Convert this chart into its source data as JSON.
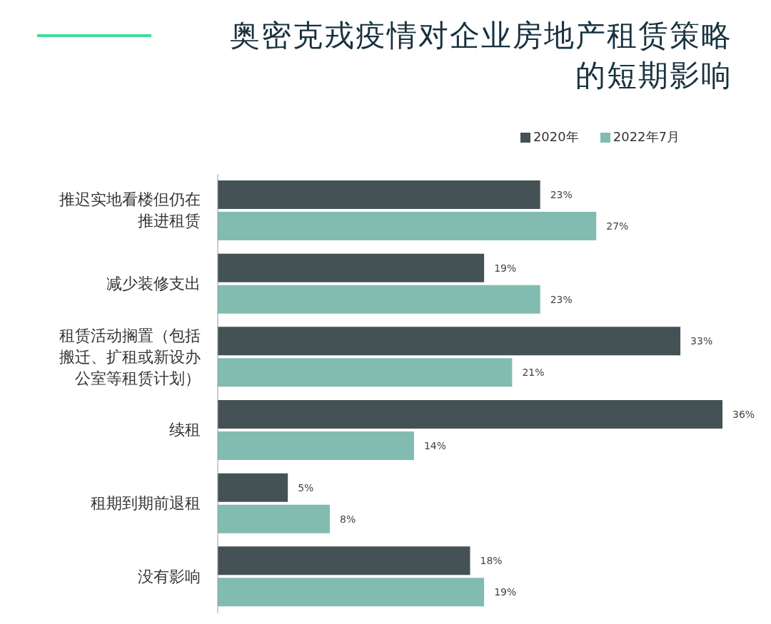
{
  "chart_data": {
    "type": "bar",
    "orientation": "horizontal",
    "title": "奥密克戎疫情对企业房地产租赁策略的短期影响",
    "categories": [
      "推迟实地看楼但仍在推进租赁",
      "减少装修支出",
      "租赁活动搁置（包括搬迁、扩租或新设办公室等租赁计划）",
      "续租",
      "租期到期前退租",
      "没有影响"
    ],
    "series": [
      {
        "name": "2020年",
        "color": "#445256",
        "values": [
          23,
          19,
          33,
          36,
          5,
          18
        ],
        "value_labels": [
          "23%",
          "19%",
          "33%",
          "36%",
          "5%",
          "18%"
        ]
      },
      {
        "name": "2022年7月",
        "color": "#82bcb0",
        "values": [
          27,
          23,
          21,
          14,
          8,
          19
        ],
        "value_labels": [
          "27%",
          "23%",
          "21%",
          "14%",
          "8%",
          "19%"
        ]
      }
    ],
    "legend": "top right"
  }
}
